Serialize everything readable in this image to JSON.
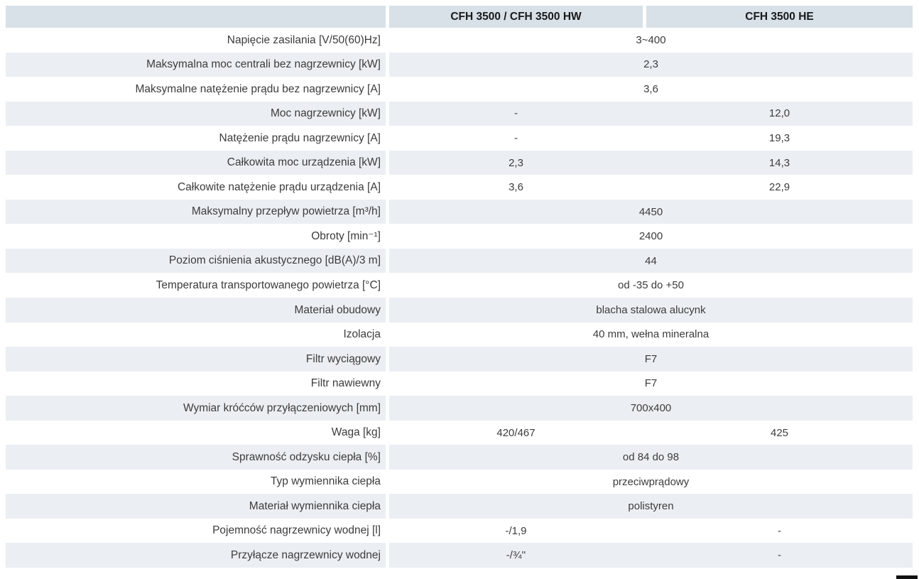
{
  "colors": {
    "header_bg": "#d8e0e8",
    "row_alt_bg": "#ebeff3",
    "row_bg": "#ffffff",
    "label_text": "#3c3c3c",
    "value_text": "#3c3c3c",
    "header_text": "#1a1a1a",
    "corner_bar": "#111111"
  },
  "table": {
    "header": {
      "col_label": "",
      "col_hw": "CFH 3500 / CFH 3500 HW",
      "col_he": "CFH 3500 HE"
    },
    "rows": [
      {
        "label": "Napięcie zasilania [V/50(60)Hz]",
        "value_span": "3~400"
      },
      {
        "label": "Maksymalna moc centrali bez nagrzewnicy [kW]",
        "value_span": "2,3"
      },
      {
        "label": "Maksymalne natężenie prądu bez nagrzewnicy [A]",
        "value_span": "3,6"
      },
      {
        "label": "Moc nagrzewnicy [kW]",
        "value_hw": "-",
        "value_he": "12,0"
      },
      {
        "label": "Natężenie prądu nagrzewnicy [A]",
        "value_hw": "-",
        "value_he": "19,3"
      },
      {
        "label": "Całkowita moc urządzenia [kW]",
        "value_hw": "2,3",
        "value_he": "14,3"
      },
      {
        "label": "Całkowite natężenie prądu urządzenia [A]",
        "value_hw": "3,6",
        "value_he": "22,9"
      },
      {
        "label": "Maksymalny przepływ powietrza [m³/h]",
        "value_span": "4450"
      },
      {
        "label": "Obroty [min⁻¹]",
        "value_span": "2400"
      },
      {
        "label": "Poziom ciśnienia akustycznego [dB(A)/3 m]",
        "value_span": "44"
      },
      {
        "label": "Temperatura transportowanego powietrza [°C]",
        "value_span": "od -35 do +50"
      },
      {
        "label": "Materiał obudowy",
        "value_span": "blacha stalowa alucynk"
      },
      {
        "label": "Izolacja",
        "value_span": "40 mm, wełna mineralna"
      },
      {
        "label": "Filtr wyciągowy",
        "value_span": "F7"
      },
      {
        "label": "Filtr nawiewny",
        "value_span": "F7"
      },
      {
        "label": "Wymiar króćców przyłączeniowych [mm]",
        "value_span": "700x400"
      },
      {
        "label": "Waga [kg]",
        "value_hw": "420/467",
        "value_he": "425"
      },
      {
        "label": "Sprawność odzysku ciepła [%]",
        "value_span": "od 84 do 98"
      },
      {
        "label": "Typ wymiennika ciepła",
        "value_span": "przeciwprądowy"
      },
      {
        "label": "Materiał wymiennika ciepła",
        "value_span": "polistyren"
      },
      {
        "label": "Pojemność nagrzewnicy wodnej [l]",
        "value_hw": "-/1,9",
        "value_he": "-"
      },
      {
        "label": "Przyłącze nagrzewnicy wodnej",
        "value_hw": "-/¾''",
        "value_he": "-"
      }
    ]
  }
}
